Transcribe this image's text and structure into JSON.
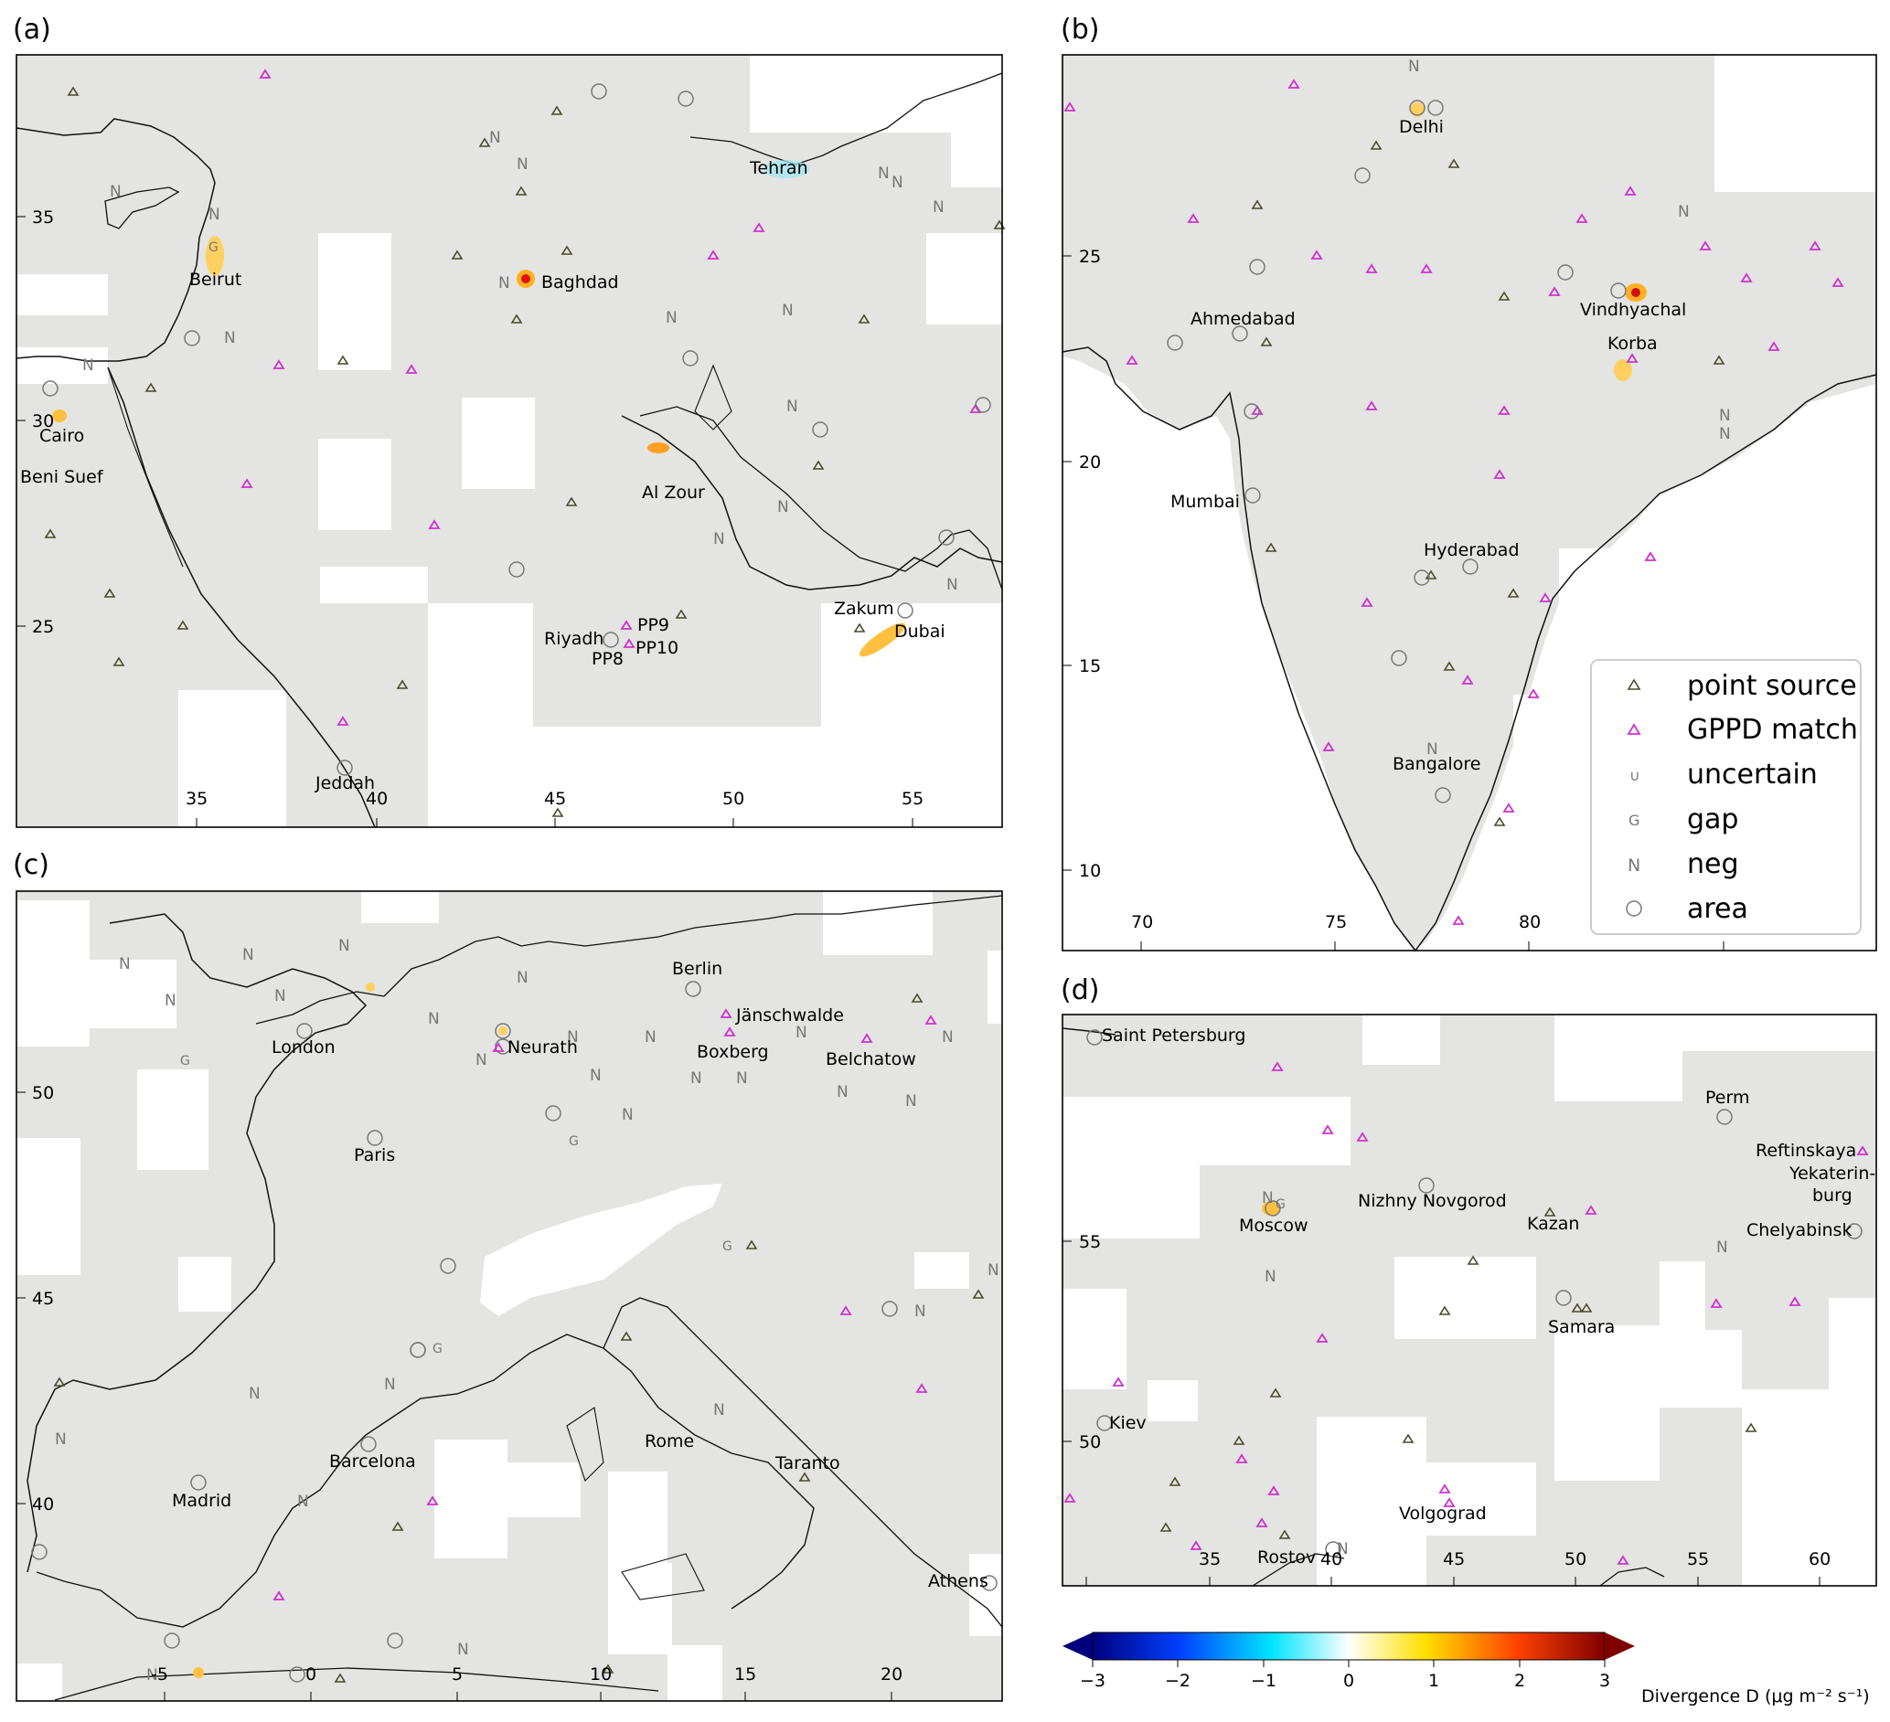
{
  "figure": {
    "panels": [
      {
        "label": "(a)",
        "xticks": [
          "35",
          "40",
          "45",
          "50",
          "55"
        ],
        "yticks": [
          "35",
          "30",
          "25"
        ],
        "cities": [
          "Tehran",
          "Beirut",
          "Baghdad",
          "Cairo",
          "Beni Suef",
          "Al Zour",
          "Riyadh",
          "PP9",
          "PP10",
          "PP8",
          "Zakum",
          "Dubai",
          "Jeddah"
        ]
      },
      {
        "label": "(b)",
        "xticks": [
          "70",
          "75",
          "80"
        ],
        "yticks": [
          "25",
          "20",
          "15",
          "10"
        ],
        "cities": [
          "Delhi",
          "Ahmedabad",
          "Vindhyachal",
          "Korba",
          "Mumbai",
          "Hyderabad",
          "Bangalore"
        ]
      },
      {
        "label": "(c)",
        "xticks": [
          "-5",
          "0",
          "5",
          "10",
          "15",
          "20"
        ],
        "yticks": [
          "50",
          "45",
          "40"
        ],
        "cities": [
          "Berlin",
          "Jänschwalde",
          "London",
          "Neurath",
          "Boxberg",
          "Belchatow",
          "Paris",
          "Barcelona",
          "Madrid",
          "Rome",
          "Taranto",
          "Athens"
        ]
      },
      {
        "label": "(d)",
        "xticks": [
          "35",
          "40",
          "45",
          "50",
          "55",
          "60"
        ],
        "yticks": [
          "55",
          "50"
        ],
        "cities": [
          "Saint Petersburg",
          "Perm",
          "Reftinskaya",
          "Yekaterin-",
          "burg",
          "Nizhny Novgorod",
          "Moscow",
          "Kazan",
          "Chelyabinsk",
          "Samara",
          "Kiev",
          "Volgograd",
          "Rostov"
        ]
      }
    ],
    "legend": {
      "items": [
        {
          "label": "point source",
          "symbol": "triangle-icon"
        },
        {
          "label": "GPPD match",
          "symbol": "magenta-triangle-icon"
        },
        {
          "label": "uncertain",
          "symbol": "u-glyph-icon"
        },
        {
          "label": "gap",
          "symbol": "g-glyph-icon"
        },
        {
          "label": "neg",
          "symbol": "n-glyph-icon"
        },
        {
          "label": "area",
          "symbol": "circle-icon"
        }
      ]
    },
    "colorbar": {
      "ticks": [
        "−3",
        "−2",
        "−1",
        "0",
        "1",
        "2",
        "3"
      ],
      "label": "Divergence D (μg m⁻² s⁻¹)",
      "range": [
        -3,
        3
      ],
      "colors": [
        "#00007f",
        "#0040ff",
        "#00e5ff",
        "#ffffff",
        "#ffe000",
        "#ff4000",
        "#7f0000"
      ]
    },
    "colors": {
      "land": "#e4e4e2",
      "point_source": "#4a4a2a",
      "gppd": "#cc33cc",
      "marker_yellow": "#f5d45a"
    }
  }
}
